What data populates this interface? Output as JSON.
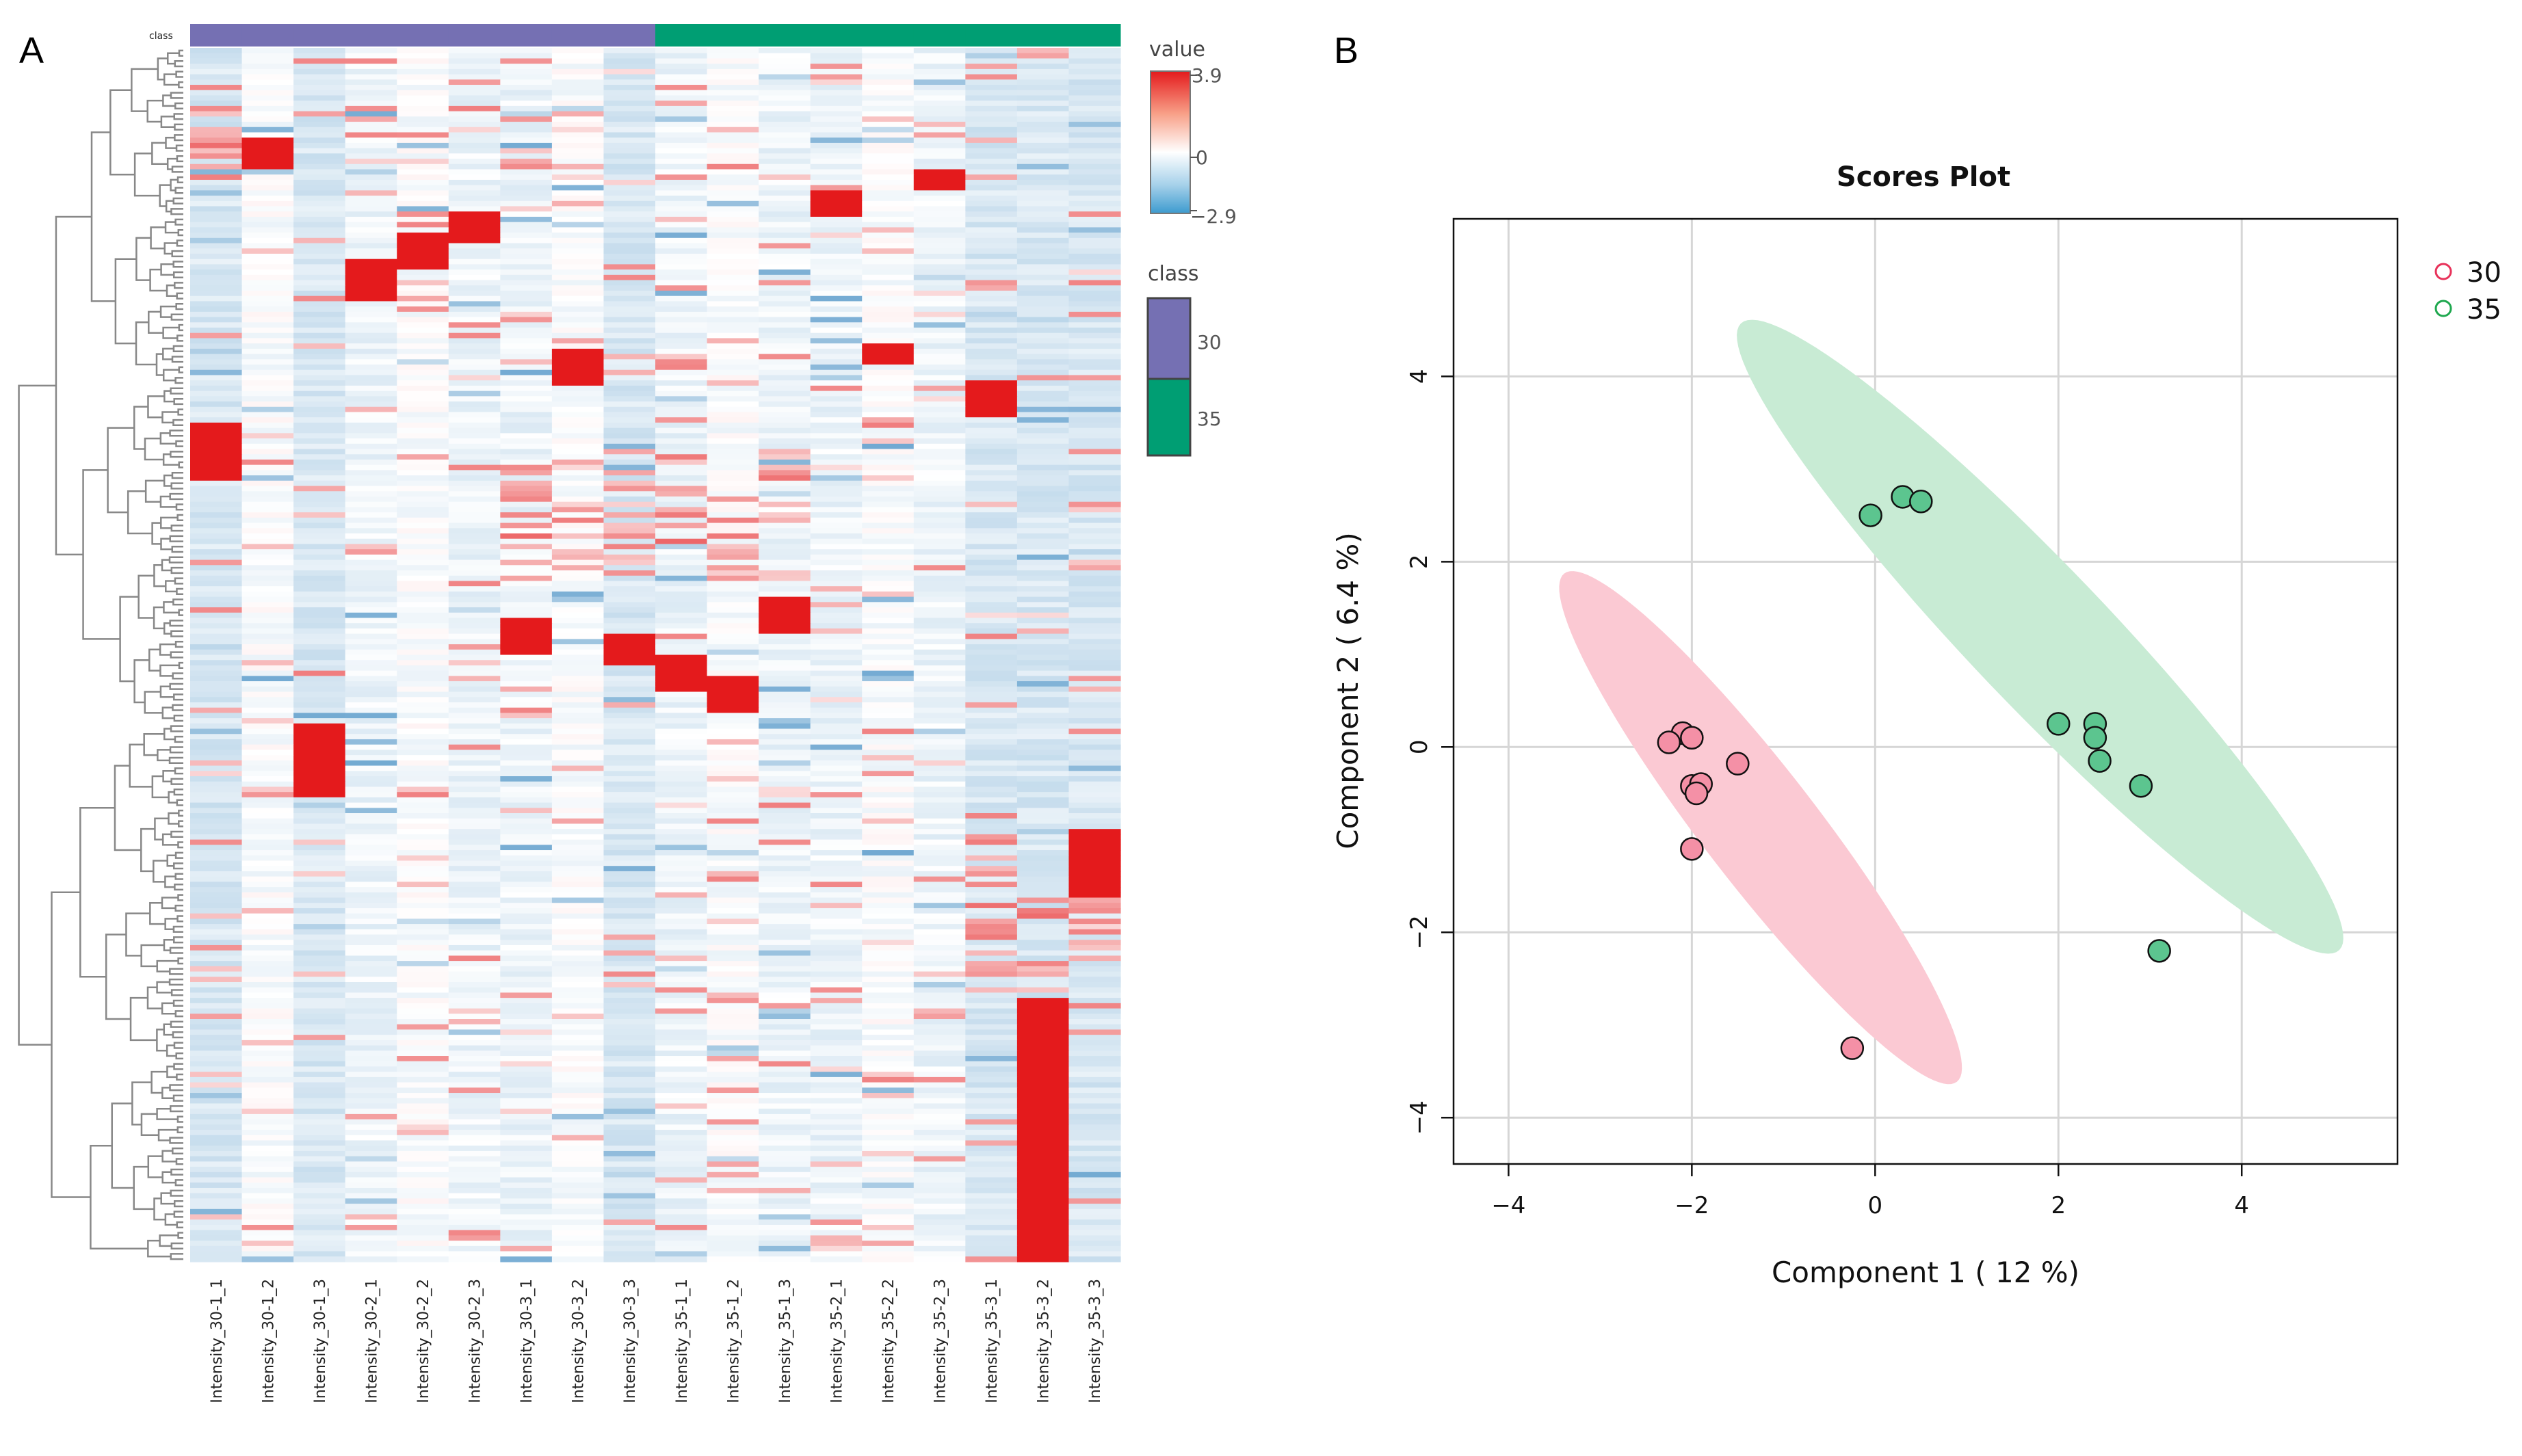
{
  "panel_a_label": "A",
  "panel_b_label": "B",
  "heatmap": {
    "class_track_label": "class",
    "value_legend_title": "value",
    "value_max_label": "3.9",
    "value_mid_label": "0",
    "value_min_label": "−2.9",
    "class_legend_title": "class",
    "class_legend": [
      {
        "label": "30",
        "color": "#7570b3"
      },
      {
        "label": "35",
        "color": "#009e73"
      }
    ],
    "color_high": "#e41a1c",
    "color_low": "#3182bd",
    "samples": [
      {
        "name": "Intensity_30-1_1",
        "class": "30",
        "block": 0
      },
      {
        "name": "Intensity_30-1_2",
        "class": "30",
        "block": 1
      },
      {
        "name": "Intensity_30-1_3",
        "class": "30",
        "block": 2
      },
      {
        "name": "Intensity_30-2_1",
        "class": "30",
        "block": 3
      },
      {
        "name": "Intensity_30-2_2",
        "class": "30",
        "block": 4
      },
      {
        "name": "Intensity_30-2_3",
        "class": "30",
        "block": 5
      },
      {
        "name": "Intensity_30-3_1",
        "class": "30",
        "block": 6
      },
      {
        "name": "Intensity_30-3_2",
        "class": "30",
        "block": 7
      },
      {
        "name": "Intensity_30-3_3",
        "class": "30",
        "block": 8
      },
      {
        "name": "Intensity_35-1_1",
        "class": "35",
        "block": 9
      },
      {
        "name": "Intensity_35-1_2",
        "class": "35",
        "block": 10
      },
      {
        "name": "Intensity_35-1_3",
        "class": "35",
        "block": 11
      },
      {
        "name": "Intensity_35-2_1",
        "class": "35",
        "block": 12
      },
      {
        "name": "Intensity_35-2_2",
        "class": "35",
        "block": 13
      },
      {
        "name": "Intensity_35-2_3",
        "class": "35",
        "block": 14
      },
      {
        "name": "Intensity_35-3_1",
        "class": "35",
        "block": 15
      },
      {
        "name": "Intensity_35-3_2",
        "class": "35",
        "block": 16
      },
      {
        "name": "Intensity_35-3_3",
        "class": "35",
        "block": 17
      }
    ]
  },
  "chart_data": {
    "type": "scatter",
    "title": "Scores Plot",
    "xlabel": "Component 1 ( 12 %)",
    "ylabel": "Component 2 ( 6.4 %)",
    "xlim": [
      -4.6,
      5.7
    ],
    "ylim": [
      -4.5,
      5.7
    ],
    "xticks": [
      -4,
      -2,
      0,
      2,
      4
    ],
    "yticks": [
      -4,
      -2,
      0,
      2,
      4
    ],
    "xtick_labels": [
      "−4",
      "−2",
      "0",
      "2",
      "4"
    ],
    "ytick_labels": [
      "−4",
      "−2",
      "0",
      "2",
      "4"
    ],
    "grid": true,
    "legend_position": "top-right",
    "series": [
      {
        "name": "30",
        "color": "#e8325a",
        "fill": "#f490a6",
        "ellipse_fill": "#fbc9d3",
        "points": [
          [
            -2.1,
            0.15
          ],
          [
            -2.25,
            0.05
          ],
          [
            -2.0,
            0.1
          ],
          [
            -2.0,
            -0.42
          ],
          [
            -1.9,
            -0.4
          ],
          [
            -1.95,
            -0.5
          ],
          [
            -1.5,
            -0.18
          ],
          [
            -2.0,
            -1.1
          ],
          [
            -0.25,
            -3.25
          ]
        ],
        "ellipse": {
          "center": [
            -1.25,
            -0.87
          ],
          "semi_axes": [
            3.48,
            0.62
          ],
          "angle_deg": -52
        }
      },
      {
        "name": "35",
        "color": "#1fa84f",
        "fill": "#5cc58f",
        "ellipse_fill": "#c8ebd4",
        "points": [
          [
            -0.05,
            2.5
          ],
          [
            0.3,
            2.7
          ],
          [
            0.5,
            2.65
          ],
          [
            2.0,
            0.25
          ],
          [
            2.4,
            0.25
          ],
          [
            2.4,
            0.1
          ],
          [
            2.45,
            -0.15
          ],
          [
            2.9,
            -0.42
          ],
          [
            3.1,
            -2.2
          ]
        ],
        "ellipse": {
          "center": [
            1.8,
            1.19
          ],
          "semi_axes": [
            4.7,
            0.75
          ],
          "angle_deg": -46
        }
      }
    ]
  }
}
